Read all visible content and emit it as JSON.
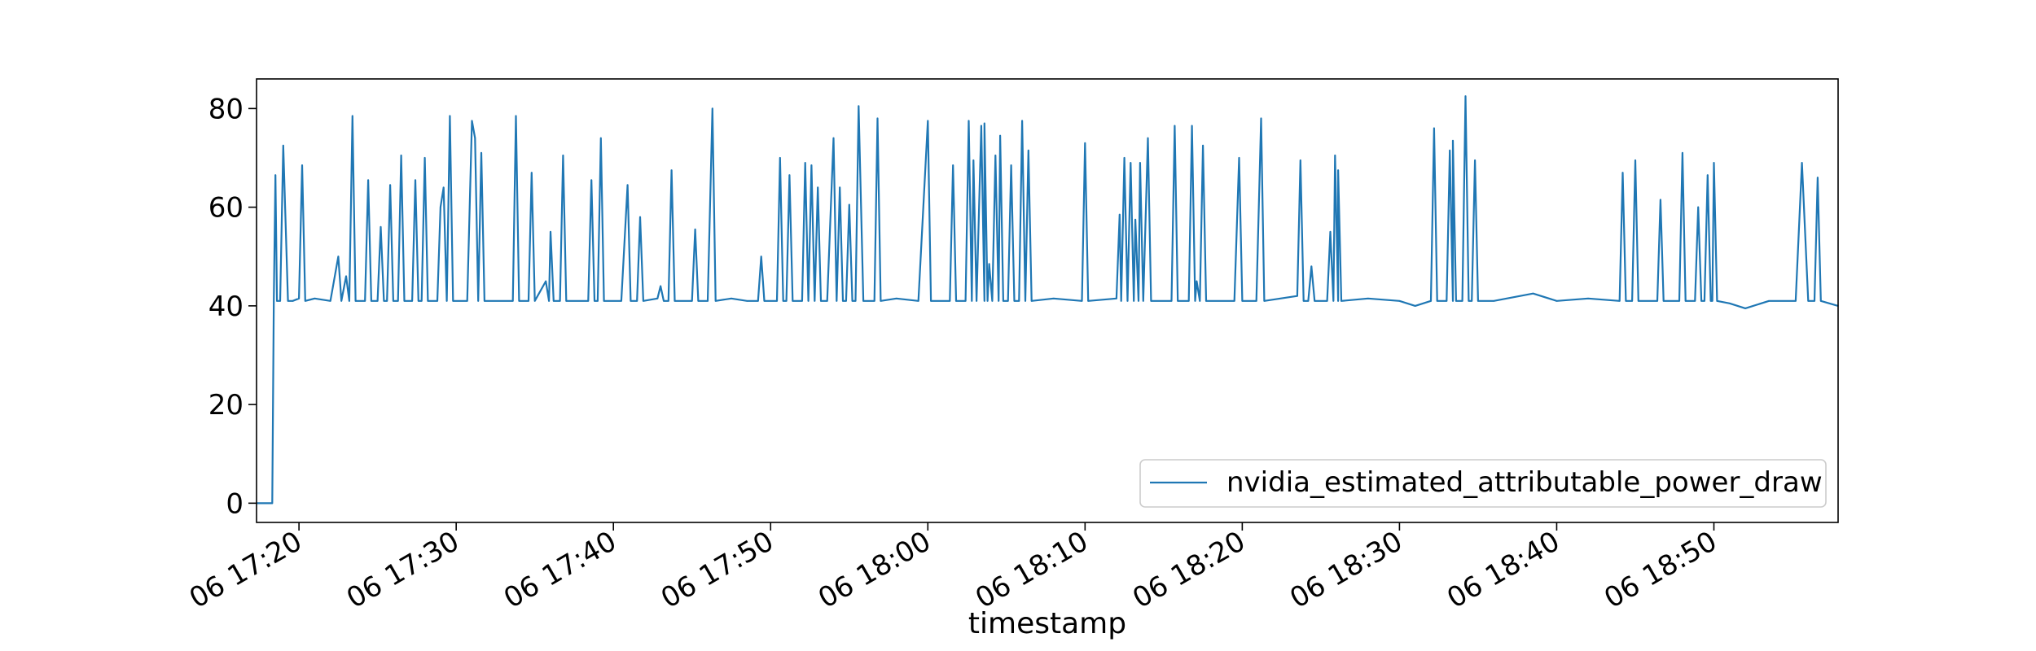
{
  "chart_data": {
    "type": "line",
    "title": "",
    "xlabel": "timestamp",
    "ylabel": "",
    "legend_placement": "lower-right",
    "grid": false,
    "x_axis": {
      "unit": "minutes past 06 17:00",
      "range": [
        17.3,
        117.9
      ],
      "ticks": [
        {
          "value": 20,
          "label": "06 17:20"
        },
        {
          "value": 30,
          "label": "06 17:30"
        },
        {
          "value": 40,
          "label": "06 17:40"
        },
        {
          "value": 50,
          "label": "06 17:50"
        },
        {
          "value": 60,
          "label": "06 18:00"
        },
        {
          "value": 70,
          "label": "06 18:10"
        },
        {
          "value": 80,
          "label": "06 18:20"
        },
        {
          "value": 90,
          "label": "06 18:30"
        },
        {
          "value": 100,
          "label": "06 18:40"
        },
        {
          "value": 110,
          "label": "06 18:50"
        }
      ]
    },
    "y_axis": {
      "range": [
        -3.9,
        86
      ],
      "ticks": [
        {
          "value": 0,
          "label": "0"
        },
        {
          "value": 20,
          "label": "20"
        },
        {
          "value": 40,
          "label": "40"
        },
        {
          "value": 60,
          "label": "60"
        },
        {
          "value": 80,
          "label": "80"
        }
      ]
    },
    "series": [
      {
        "name": "nvidia_estimated_attributable_power_draw",
        "color": "#1f77b4",
        "baseline": 41.5,
        "points": [
          [
            17.3,
            0
          ],
          [
            18.3,
            0
          ],
          [
            18.4,
            41
          ],
          [
            18.5,
            66.5
          ],
          [
            18.6,
            41
          ],
          [
            18.8,
            41
          ],
          [
            19.0,
            72.5
          ],
          [
            19.3,
            41
          ],
          [
            19.6,
            41
          ],
          [
            20.0,
            41.5
          ],
          [
            20.2,
            68.5
          ],
          [
            20.4,
            41
          ],
          [
            21.0,
            41.5
          ],
          [
            22.0,
            41
          ],
          [
            22.5,
            50
          ],
          [
            22.7,
            41
          ],
          [
            23.0,
            46
          ],
          [
            23.2,
            41
          ],
          [
            23.4,
            78.5
          ],
          [
            23.6,
            41
          ],
          [
            24.2,
            41
          ],
          [
            24.4,
            65.5
          ],
          [
            24.6,
            41
          ],
          [
            25.0,
            41
          ],
          [
            25.2,
            56
          ],
          [
            25.4,
            41
          ],
          [
            25.6,
            41
          ],
          [
            25.8,
            64.5
          ],
          [
            26.0,
            41
          ],
          [
            26.3,
            41
          ],
          [
            26.5,
            70.5
          ],
          [
            26.7,
            41
          ],
          [
            27.2,
            41
          ],
          [
            27.4,
            65.5
          ],
          [
            27.6,
            41
          ],
          [
            27.8,
            41
          ],
          [
            28.0,
            70
          ],
          [
            28.2,
            41
          ],
          [
            28.8,
            41
          ],
          [
            29.0,
            60
          ],
          [
            29.2,
            64
          ],
          [
            29.4,
            41
          ],
          [
            29.6,
            78.5
          ],
          [
            29.8,
            41
          ],
          [
            30.7,
            41
          ],
          [
            31.0,
            77.5
          ],
          [
            31.2,
            74
          ],
          [
            31.4,
            41
          ],
          [
            31.6,
            71
          ],
          [
            31.8,
            41
          ],
          [
            33.6,
            41
          ],
          [
            33.8,
            78.5
          ],
          [
            34.0,
            41
          ],
          [
            34.6,
            41
          ],
          [
            34.8,
            67
          ],
          [
            35.0,
            41
          ],
          [
            35.7,
            45
          ],
          [
            35.9,
            41
          ],
          [
            36.0,
            55
          ],
          [
            36.2,
            41
          ],
          [
            36.6,
            41
          ],
          [
            36.8,
            70.5
          ],
          [
            37.0,
            41
          ],
          [
            38.4,
            41
          ],
          [
            38.6,
            65.5
          ],
          [
            38.8,
            41
          ],
          [
            39.0,
            41
          ],
          [
            39.2,
            74
          ],
          [
            39.4,
            41
          ],
          [
            40.5,
            41
          ],
          [
            40.9,
            64.5
          ],
          [
            41.1,
            41
          ],
          [
            41.5,
            41
          ],
          [
            41.7,
            58
          ],
          [
            41.9,
            41
          ],
          [
            42.8,
            41.5
          ],
          [
            43.0,
            44
          ],
          [
            43.2,
            41
          ],
          [
            43.5,
            41
          ],
          [
            43.7,
            67.5
          ],
          [
            43.9,
            41
          ],
          [
            45.0,
            41
          ],
          [
            45.2,
            55.5
          ],
          [
            45.4,
            41
          ],
          [
            46.0,
            41
          ],
          [
            46.3,
            80
          ],
          [
            46.5,
            41
          ],
          [
            47.5,
            41.5
          ],
          [
            48.5,
            41
          ],
          [
            49.2,
            41
          ],
          [
            49.4,
            50
          ],
          [
            49.6,
            41
          ],
          [
            50.4,
            41
          ],
          [
            50.6,
            70
          ],
          [
            50.8,
            41
          ],
          [
            51.0,
            41
          ],
          [
            51.2,
            66.5
          ],
          [
            51.4,
            41
          ],
          [
            52.0,
            41
          ],
          [
            52.2,
            69
          ],
          [
            52.4,
            41
          ],
          [
            52.6,
            68.5
          ],
          [
            52.8,
            41
          ],
          [
            53.0,
            64
          ],
          [
            53.2,
            41
          ],
          [
            53.6,
            41
          ],
          [
            54.0,
            74
          ],
          [
            54.2,
            41
          ],
          [
            54.4,
            64
          ],
          [
            54.6,
            41
          ],
          [
            54.8,
            41
          ],
          [
            55.0,
            60.5
          ],
          [
            55.2,
            41
          ],
          [
            55.4,
            41
          ],
          [
            55.6,
            80.5
          ],
          [
            55.9,
            41
          ],
          [
            56.6,
            41
          ],
          [
            56.8,
            78
          ],
          [
            57.0,
            41
          ],
          [
            58.0,
            41.5
          ],
          [
            59.4,
            41
          ],
          [
            60.0,
            77.5
          ],
          [
            60.2,
            41
          ],
          [
            61.4,
            41
          ],
          [
            61.6,
            68.5
          ],
          [
            61.8,
            41
          ],
          [
            62.4,
            41
          ],
          [
            62.6,
            77.5
          ],
          [
            62.8,
            41
          ],
          [
            62.9,
            69.5
          ],
          [
            63.1,
            41
          ],
          [
            63.4,
            76.5
          ],
          [
            63.6,
            41
          ],
          [
            63.6,
            77
          ],
          [
            63.8,
            41
          ],
          [
            63.9,
            48.5
          ],
          [
            64.1,
            41
          ],
          [
            64.3,
            70.5
          ],
          [
            64.5,
            41
          ],
          [
            64.6,
            74.5
          ],
          [
            64.8,
            41
          ],
          [
            65.1,
            41
          ],
          [
            65.3,
            68.5
          ],
          [
            65.5,
            41
          ],
          [
            65.8,
            41
          ],
          [
            66.0,
            77.5
          ],
          [
            66.2,
            41
          ],
          [
            66.4,
            71.5
          ],
          [
            66.6,
            41
          ],
          [
            68.0,
            41.5
          ],
          [
            69.8,
            41
          ],
          [
            70.0,
            73
          ],
          [
            70.2,
            41
          ],
          [
            72.0,
            41.5
          ],
          [
            72.2,
            58.5
          ],
          [
            72.3,
            41
          ],
          [
            72.5,
            70
          ],
          [
            72.7,
            41
          ],
          [
            72.9,
            69
          ],
          [
            73.1,
            41
          ],
          [
            73.2,
            57.5
          ],
          [
            73.4,
            41
          ],
          [
            73.5,
            69
          ],
          [
            73.7,
            41
          ],
          [
            74.0,
            74
          ],
          [
            74.2,
            41
          ],
          [
            75.5,
            41
          ],
          [
            75.7,
            76.5
          ],
          [
            75.9,
            41
          ],
          [
            76.6,
            41
          ],
          [
            76.8,
            76.5
          ],
          [
            77.0,
            41
          ],
          [
            77.1,
            45
          ],
          [
            77.3,
            41
          ],
          [
            77.5,
            72.5
          ],
          [
            77.7,
            41
          ],
          [
            79.5,
            41
          ],
          [
            79.8,
            70
          ],
          [
            80.0,
            41
          ],
          [
            80.9,
            41
          ],
          [
            81.2,
            78
          ],
          [
            81.4,
            41
          ],
          [
            83.5,
            42
          ],
          [
            83.7,
            69.5
          ],
          [
            83.9,
            41
          ],
          [
            84.2,
            41
          ],
          [
            84.4,
            48
          ],
          [
            84.6,
            41
          ],
          [
            85.4,
            41
          ],
          [
            85.6,
            55
          ],
          [
            85.8,
            41
          ],
          [
            85.9,
            70.5
          ],
          [
            86.1,
            41
          ],
          [
            86.1,
            67.5
          ],
          [
            86.3,
            41
          ],
          [
            88.0,
            41.5
          ],
          [
            90.0,
            41
          ],
          [
            91.0,
            40
          ],
          [
            92.0,
            41
          ],
          [
            92.2,
            76
          ],
          [
            92.4,
            41
          ],
          [
            93.0,
            41
          ],
          [
            93.2,
            71.5
          ],
          [
            93.4,
            41
          ],
          [
            93.4,
            73.5
          ],
          [
            93.6,
            41
          ],
          [
            94.0,
            41
          ],
          [
            94.2,
            82.5
          ],
          [
            94.4,
            41
          ],
          [
            94.6,
            41
          ],
          [
            94.8,
            69.5
          ],
          [
            95.0,
            41
          ],
          [
            96.0,
            41
          ],
          [
            98.5,
            42.5
          ],
          [
            100.0,
            41
          ],
          [
            102.0,
            41.5
          ],
          [
            104.0,
            41
          ],
          [
            104.2,
            67
          ],
          [
            104.4,
            41
          ],
          [
            104.8,
            41
          ],
          [
            105.0,
            69.5
          ],
          [
            105.2,
            41
          ],
          [
            106.4,
            41
          ],
          [
            106.6,
            61.5
          ],
          [
            106.8,
            41
          ],
          [
            107.8,
            41
          ],
          [
            108.0,
            71
          ],
          [
            108.2,
            41
          ],
          [
            108.8,
            41
          ],
          [
            109.0,
            60
          ],
          [
            109.2,
            41
          ],
          [
            109.4,
            41
          ],
          [
            109.6,
            66.5
          ],
          [
            109.8,
            41
          ],
          [
            109.9,
            41
          ],
          [
            110.0,
            69
          ],
          [
            110.2,
            41
          ],
          [
            111.0,
            40.5
          ],
          [
            112.0,
            39.5
          ],
          [
            113.5,
            41
          ],
          [
            115.2,
            41
          ],
          [
            115.6,
            69
          ],
          [
            116.0,
            41
          ],
          [
            116.4,
            41
          ],
          [
            116.6,
            66
          ],
          [
            116.8,
            41
          ],
          [
            117.9,
            40
          ]
        ]
      }
    ]
  }
}
